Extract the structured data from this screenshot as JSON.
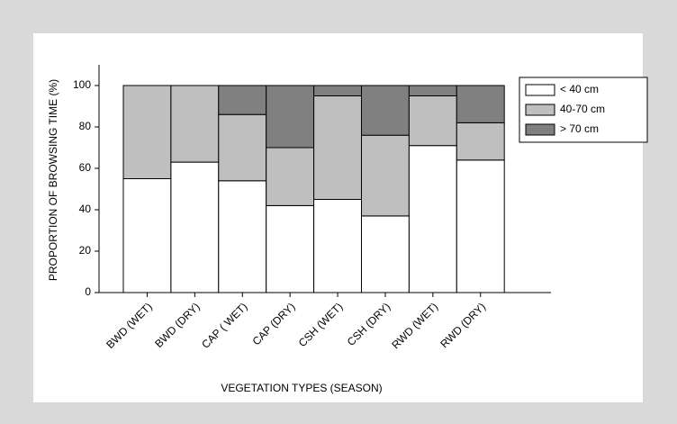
{
  "chart_data": {
    "type": "stacked_bar",
    "xlabel": "VEGETATION TYPES (SEASON)",
    "ylabel": "PROPORTION OF BROWSING TIME (%)",
    "categories": [
      "BWD (WET)",
      "BWD (DRY)",
      "CAP ( WET)",
      "CAP (DRY)",
      "CSH (WET)",
      "CSH (DRY)",
      "RWD (WET)",
      "RWD (DRY)"
    ],
    "series": [
      {
        "name": "< 40 cm",
        "color": "#ffffff",
        "values": [
          55,
          63,
          54,
          42,
          45,
          37,
          71,
          64
        ]
      },
      {
        "name": "40-70 cm",
        "color": "#bfbfbf",
        "values": [
          45,
          37,
          32,
          28,
          50,
          39,
          24,
          18
        ]
      },
      {
        "name": "> 70 cm",
        "color": "#808080",
        "values": [
          0,
          0,
          14,
          30,
          5,
          24,
          5,
          18
        ]
      }
    ],
    "ylim": [
      0,
      110
    ],
    "yticks": [
      0,
      20,
      40,
      60,
      80,
      100
    ],
    "legend": "upper right"
  }
}
